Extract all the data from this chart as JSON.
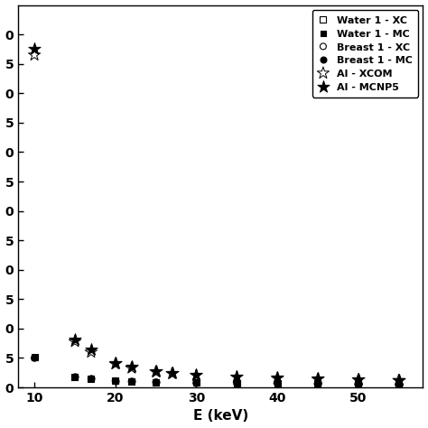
{
  "xlabel": "E (keV)",
  "xlim": [
    8,
    58
  ],
  "ylim": [
    0,
    6.5
  ],
  "xticks": [
    10,
    20,
    30,
    40,
    50
  ],
  "ytick_vals": [
    0.0,
    0.5,
    1.0,
    1.5,
    2.0,
    2.5,
    3.0,
    3.5,
    4.0,
    4.5,
    5.0,
    5.5,
    6.0
  ],
  "ytick_labels": [
    "0",
    "5",
    "0",
    "5",
    "0",
    "5",
    "0",
    "5",
    "0",
    "5",
    "0",
    "5",
    "0"
  ],
  "legend_labels": [
    "Water 1 - XC",
    "Water 1 - MC",
    "Breast 1 - XC",
    "Breast 1 - MC",
    "Al - XCOM",
    "Al - MCNP5"
  ],
  "water_xcom_E": [
    10,
    15,
    17,
    20,
    22,
    25,
    30,
    35,
    40,
    45,
    50,
    55
  ],
  "water_xcom_mu": [
    0.52,
    0.175,
    0.148,
    0.112,
    0.102,
    0.092,
    0.082,
    0.073,
    0.069,
    0.066,
    0.064,
    0.062
  ],
  "water_mcnp_E": [
    10,
    15,
    17,
    20,
    22,
    25,
    30,
    35,
    40,
    45,
    50,
    55
  ],
  "water_mcnp_mu": [
    0.51,
    0.18,
    0.15,
    0.114,
    0.104,
    0.094,
    0.083,
    0.075,
    0.071,
    0.068,
    0.065,
    0.063
  ],
  "breast_xcom_E": [
    10,
    15,
    17,
    20,
    22,
    25,
    30,
    35,
    40,
    45,
    50,
    55
  ],
  "breast_xcom_mu": [
    0.5,
    0.173,
    0.144,
    0.11,
    0.1,
    0.09,
    0.08,
    0.072,
    0.068,
    0.065,
    0.063,
    0.061
  ],
  "breast_mcnp_E": [
    10,
    15,
    17,
    20,
    22,
    25,
    30,
    35,
    40,
    45,
    50,
    55
  ],
  "breast_mcnp_mu": [
    0.505,
    0.178,
    0.147,
    0.112,
    0.102,
    0.092,
    0.082,
    0.074,
    0.07,
    0.067,
    0.065,
    0.063
  ],
  "al_xcom_E": [
    10,
    15,
    17,
    20,
    22,
    25,
    27,
    30,
    35,
    40,
    45,
    50,
    55
  ],
  "al_xcom_mu": [
    5.65,
    0.78,
    0.6,
    0.4,
    0.33,
    0.265,
    0.235,
    0.205,
    0.175,
    0.155,
    0.14,
    0.128,
    0.118
  ],
  "al_mcnp_E": [
    10,
    15,
    17,
    20,
    22,
    25,
    27,
    30,
    35,
    40,
    45,
    50,
    55
  ],
  "al_mcnp_mu": [
    5.75,
    0.82,
    0.64,
    0.42,
    0.35,
    0.28,
    0.25,
    0.215,
    0.185,
    0.165,
    0.15,
    0.135,
    0.125
  ],
  "background_color": "#ffffff"
}
